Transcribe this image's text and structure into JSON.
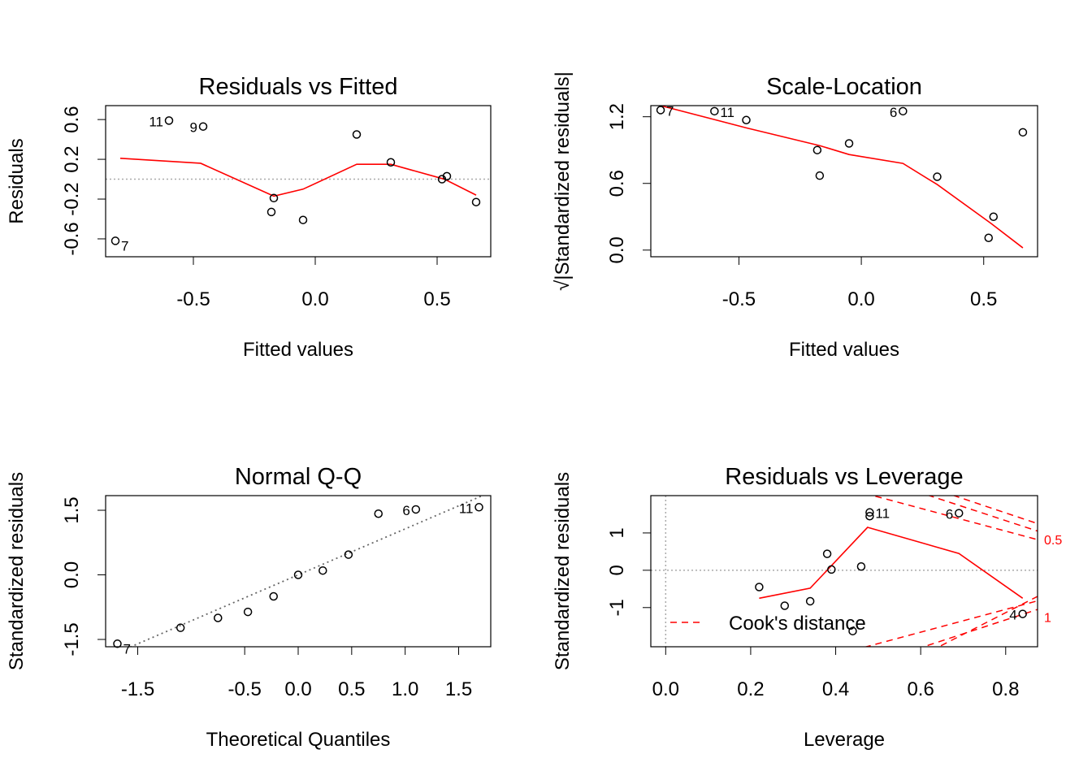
{
  "chart_data": [
    {
      "type": "scatter",
      "title": "Residuals vs Fitted",
      "xlabel": "Fitted values",
      "ylabel": "Residuals",
      "xlim": [
        -0.86,
        0.72
      ],
      "ylim": [
        -0.78,
        0.74
      ],
      "xticks": [
        "-0.5",
        "0.0",
        "0.5"
      ],
      "xtick_values": [
        -0.5,
        0,
        0.5
      ],
      "yticks": [
        "-0.6",
        "-0.2",
        "0.2",
        "0.6"
      ],
      "ytick_values": [
        -0.6,
        -0.2,
        0.2,
        0.6
      ],
      "reference_h": 0,
      "points": [
        {
          "x": -0.82,
          "y": -0.62,
          "label": "7"
        },
        {
          "x": -0.6,
          "y": 0.59,
          "label": "11"
        },
        {
          "x": -0.46,
          "y": 0.53,
          "label": "9"
        },
        {
          "x": -0.18,
          "y": -0.33,
          "label": ""
        },
        {
          "x": -0.17,
          "y": -0.19,
          "label": ""
        },
        {
          "x": -0.05,
          "y": -0.41,
          "label": ""
        },
        {
          "x": 0.17,
          "y": 0.45,
          "label": ""
        },
        {
          "x": 0.31,
          "y": 0.17,
          "label": ""
        },
        {
          "x": 0.52,
          "y": 0.0,
          "label": ""
        },
        {
          "x": 0.54,
          "y": 0.03,
          "label": ""
        },
        {
          "x": 0.66,
          "y": -0.23,
          "label": ""
        }
      ],
      "smooth": [
        [
          -0.8,
          0.21
        ],
        [
          -0.47,
          0.16
        ],
        [
          -0.17,
          -0.17
        ],
        [
          -0.05,
          -0.1
        ],
        [
          0.17,
          0.15
        ],
        [
          0.31,
          0.15
        ],
        [
          0.53,
          0.0
        ],
        [
          0.66,
          -0.16
        ]
      ]
    },
    {
      "type": "scatter",
      "title": "Scale-Location",
      "xlabel": "Fitted values",
      "ylabel": "√|Standardized residuals|",
      "xlim": [
        -0.86,
        0.72
      ],
      "ylim": [
        -0.06,
        1.3
      ],
      "xticks": [
        "-0.5",
        "0.0",
        "0.5"
      ],
      "xtick_values": [
        -0.5,
        0,
        0.5
      ],
      "yticks": [
        "0.0",
        "0.6",
        "1.2"
      ],
      "ytick_values": [
        0,
        0.6,
        1.2
      ],
      "points": [
        {
          "x": -0.82,
          "y": 1.26,
          "label": "7"
        },
        {
          "x": -0.6,
          "y": 1.25,
          "label": "11"
        },
        {
          "x": -0.47,
          "y": 1.17,
          "label": ""
        },
        {
          "x": -0.18,
          "y": 0.9,
          "label": ""
        },
        {
          "x": -0.17,
          "y": 0.67,
          "label": ""
        },
        {
          "x": -0.05,
          "y": 0.96,
          "label": ""
        },
        {
          "x": 0.17,
          "y": 1.25,
          "label": "6"
        },
        {
          "x": 0.31,
          "y": 0.66,
          "label": ""
        },
        {
          "x": 0.52,
          "y": 0.11,
          "label": ""
        },
        {
          "x": 0.54,
          "y": 0.3,
          "label": ""
        },
        {
          "x": 0.66,
          "y": 1.06,
          "label": ""
        }
      ],
      "smooth": [
        [
          -0.82,
          1.3
        ],
        [
          -0.47,
          1.1
        ],
        [
          -0.17,
          0.94
        ],
        [
          -0.05,
          0.86
        ],
        [
          0.17,
          0.78
        ],
        [
          0.31,
          0.59
        ],
        [
          0.53,
          0.24
        ],
        [
          0.66,
          0.02
        ]
      ]
    },
    {
      "type": "scatter",
      "title": "Normal Q-Q",
      "xlabel": "Theoretical Quantiles",
      "ylabel": "Standardized residuals",
      "xlim": [
        -1.8,
        1.8
      ],
      "ylim": [
        -1.67,
        1.84
      ],
      "xticks": [
        "-1.5",
        "-0.5",
        "0.0",
        "0.5",
        "1.0",
        "1.5"
      ],
      "xtick_values": [
        -1.5,
        -0.5,
        0,
        0.5,
        1.0,
        1.5
      ],
      "yticks": [
        "-1.5",
        "0.0",
        "1.5"
      ],
      "ytick_values": [
        -1.5,
        0,
        1.5
      ],
      "points": [
        {
          "x": -1.69,
          "y": -1.6,
          "label": "7"
        },
        {
          "x": -1.1,
          "y": -1.23,
          "label": ""
        },
        {
          "x": -0.75,
          "y": -1.0,
          "label": ""
        },
        {
          "x": -0.47,
          "y": -0.86,
          "label": ""
        },
        {
          "x": -0.23,
          "y": -0.5,
          "label": ""
        },
        {
          "x": 0.0,
          "y": 0.0,
          "label": ""
        },
        {
          "x": 0.23,
          "y": 0.1,
          "label": ""
        },
        {
          "x": 0.47,
          "y": 0.47,
          "label": ""
        },
        {
          "x": 0.75,
          "y": 1.42,
          "label": ""
        },
        {
          "x": 1.1,
          "y": 1.52,
          "label": "6"
        },
        {
          "x": 1.69,
          "y": 1.57,
          "label": "11"
        }
      ],
      "qqline": [
        [
          -2.2,
          -2.35
        ],
        [
          2.2,
          2.35
        ]
      ]
    },
    {
      "type": "scatter",
      "title": "Residuals vs Leverage",
      "xlabel": "Leverage",
      "ylabel": "Standardized residuals",
      "xlim": [
        -0.035,
        0.875
      ],
      "ylim": [
        -2.05,
        2.0
      ],
      "xticks": [
        "0.0",
        "0.2",
        "0.4",
        "0.6",
        "0.8"
      ],
      "xtick_values": [
        0,
        0.2,
        0.4,
        0.6,
        0.8
      ],
      "yticks": [
        "-1",
        "0",
        "1"
      ],
      "ytick_values": [
        -1,
        0,
        1
      ],
      "reference_h": 0,
      "reference_v": 0,
      "points": [
        {
          "x": 0.22,
          "y": -0.45,
          "label": ""
        },
        {
          "x": 0.28,
          "y": -0.95,
          "label": ""
        },
        {
          "x": 0.34,
          "y": -0.83,
          "label": ""
        },
        {
          "x": 0.38,
          "y": 0.44,
          "label": ""
        },
        {
          "x": 0.39,
          "y": 0.02,
          "label": ""
        },
        {
          "x": 0.44,
          "y": -1.63,
          "label": ""
        },
        {
          "x": 0.46,
          "y": 0.1,
          "label": ""
        },
        {
          "x": 0.48,
          "y": 1.45,
          "label": ""
        },
        {
          "x": 0.48,
          "y": 1.55,
          "label": "11"
        },
        {
          "x": 0.69,
          "y": 1.53,
          "label": "6"
        },
        {
          "x": 0.84,
          "y": -1.17,
          "label": "4"
        }
      ],
      "smooth": [
        [
          0.22,
          -0.75
        ],
        [
          0.34,
          -0.48
        ],
        [
          0.475,
          1.15
        ],
        [
          0.69,
          0.45
        ],
        [
          0.84,
          -0.75
        ]
      ],
      "cooks_contours": [
        {
          "label": "0.5",
          "upper": [
            [
              0.39,
              2.3
            ],
            [
              0.875,
              0.82
            ]
          ],
          "lower": [
            [
              0.39,
              -2.3
            ],
            [
              0.875,
              -0.82
            ]
          ]
        },
        {
          "label": "",
          "upper": [
            [
              0.54,
              2.3
            ],
            [
              0.875,
              1.05
            ]
          ],
          "lower": [
            [
              0.54,
              -2.3
            ],
            [
              0.875,
              -1.05
            ]
          ]
        },
        {
          "label": "1",
          "upper": [
            [
              0.6,
              2.3
            ],
            [
              0.875,
              1.25
            ]
          ],
          "lower": [
            [
              0.6,
              -2.3
            ],
            [
              0.875,
              -0.7
            ]
          ]
        }
      ],
      "legend": {
        "label": "Cook's distance",
        "position": "bottom-left"
      }
    }
  ]
}
